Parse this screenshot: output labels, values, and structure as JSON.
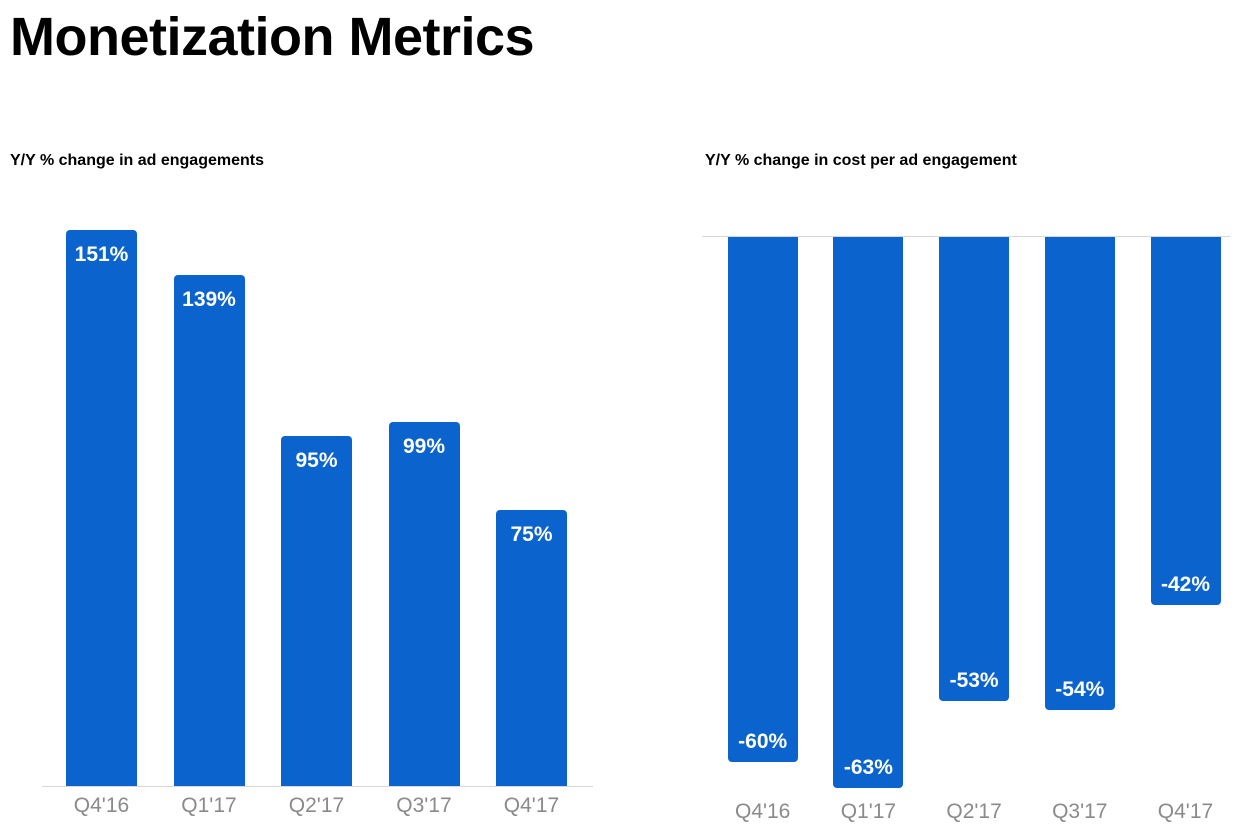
{
  "page": {
    "title": "Monetization Metrics",
    "background": "#FFFFFF"
  },
  "colors": {
    "bar_blue": "#0B63CE",
    "axis_line": "#D7D7D7",
    "tick_label_gray": "#8A8A8A",
    "heading_black": "#000000",
    "value_label_white": "#FFFFFF"
  },
  "chart_data": [
    {
      "type": "bar",
      "title": "Y/Y % change in ad engagements",
      "categories": [
        "Q4'16",
        "Q1'17",
        "Q2'17",
        "Q3'17",
        "Q4'17"
      ],
      "values": [
        151,
        139,
        95,
        99,
        75
      ],
      "value_labels": [
        "151%",
        "139%",
        "95%",
        "99%",
        "75%"
      ],
      "xlabel": "",
      "ylabel": "",
      "ylim": [
        0,
        160
      ],
      "bar_color": "#0B63CE",
      "grid": false,
      "legend": "none",
      "axis_style": "baseline-at-bottom",
      "value_label_position": "inside-top"
    },
    {
      "type": "bar",
      "title": "Y/Y % change in cost per ad engagement",
      "categories": [
        "Q4'16",
        "Q1'17",
        "Q2'17",
        "Q3'17",
        "Q4'17"
      ],
      "values": [
        -60,
        -63,
        -53,
        -54,
        -42
      ],
      "value_labels": [
        "-60%",
        "-63%",
        "-53%",
        "-54%",
        "-42%"
      ],
      "xlabel": "",
      "ylabel": "",
      "ylim": [
        -67,
        0
      ],
      "bar_color": "#0B63CE",
      "grid": false,
      "legend": "none",
      "axis_style": "zero-line-at-top",
      "value_label_position": "inside-bottom"
    }
  ]
}
